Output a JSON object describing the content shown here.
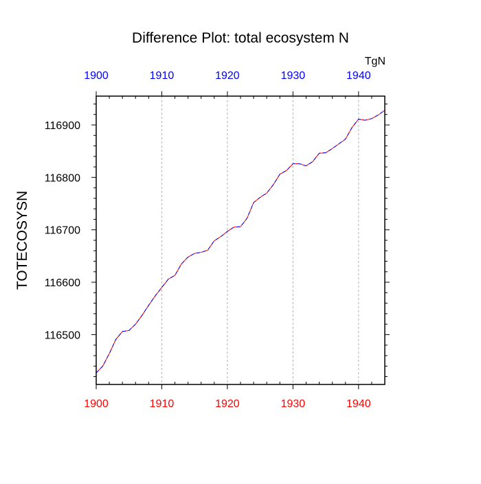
{
  "chart_data": {
    "type": "line",
    "title": "Difference Plot: total ecosystem N",
    "units_label": "TgN",
    "ylabel": "TOTECOSYSN",
    "xlabel": "",
    "xlim": [
      1900,
      1944
    ],
    "ylim": [
      116405,
      116955
    ],
    "x_ticks": [
      1900,
      1910,
      1920,
      1930,
      1940
    ],
    "x_tick_labels": [
      "1900",
      "1910",
      "1920",
      "1930",
      "1940"
    ],
    "y_ticks": [
      116500,
      116600,
      116700,
      116800,
      116900
    ],
    "y_tick_labels": [
      "116500",
      "116600",
      "116700",
      "116800",
      "116900"
    ],
    "grid": "vertical dashed at major x ticks",
    "colors": {
      "top_axis_labels": "#0000ff",
      "bottom_axis_labels": "#ff0000",
      "series_line_1": "#ff0000",
      "series_line_2": "#0000ff"
    },
    "x": [
      1900,
      1901,
      1902,
      1903,
      1904,
      1905,
      1906,
      1907,
      1908,
      1909,
      1910,
      1911,
      1912,
      1913,
      1914,
      1915,
      1916,
      1917,
      1918,
      1919,
      1920,
      1921,
      1922,
      1923,
      1924,
      1925,
      1926,
      1927,
      1928,
      1929,
      1930,
      1931,
      1932,
      1933,
      1934,
      1935,
      1936,
      1937,
      1938,
      1939,
      1940,
      1941,
      1942,
      1943,
      1944
    ],
    "series": [
      {
        "values": [
          116427,
          116440,
          116464,
          116491,
          116506,
          116508,
          116520,
          116537,
          116556,
          116574,
          116590,
          116606,
          116613,
          116635,
          116648,
          116655,
          116657,
          116661,
          116679,
          116687,
          116697,
          116705,
          116706,
          116722,
          116752,
          116762,
          116770,
          116786,
          116806,
          116813,
          116826,
          116826,
          116822,
          116830,
          116846,
          116847,
          116855,
          116864,
          116873,
          116895,
          116911,
          116909,
          116912,
          116919,
          116928
        ]
      },
      {
        "values": [
          116427,
          116440,
          116464,
          116491,
          116506,
          116508,
          116520,
          116537,
          116556,
          116574,
          116590,
          116606,
          116613,
          116635,
          116648,
          116655,
          116657,
          116661,
          116679,
          116687,
          116697,
          116705,
          116706,
          116722,
          116752,
          116762,
          116770,
          116786,
          116806,
          116813,
          116826,
          116826,
          116822,
          116830,
          116846,
          116847,
          116855,
          116864,
          116873,
          116895,
          116911,
          116909,
          116912,
          116919,
          116928
        ]
      }
    ]
  }
}
